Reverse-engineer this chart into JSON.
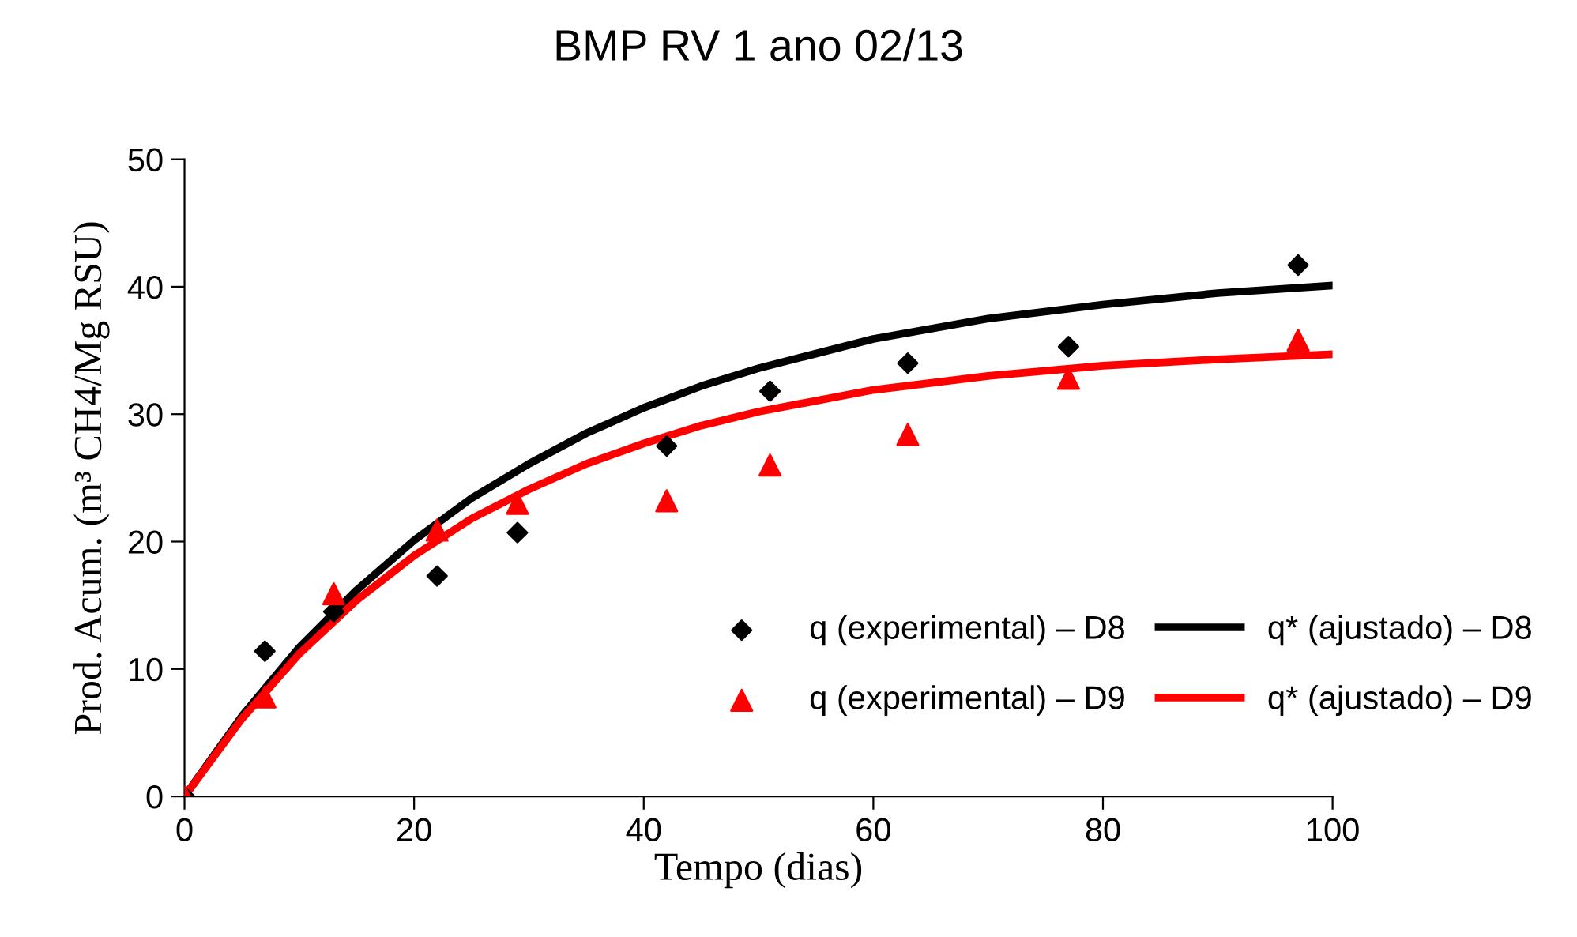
{
  "chart_data": {
    "type": "scatter",
    "title": "BMP RV 1 ano 02/13",
    "xlabel": "Tempo (dias)",
    "ylabel": "Prod. Acum. (m³ CH4/Mg RSU)",
    "xlim": [
      0,
      100
    ],
    "xticks": [
      0,
      20,
      40,
      60,
      80,
      100
    ],
    "ylim": [
      0,
      50
    ],
    "yticks": [
      0,
      10,
      20,
      30,
      40,
      50
    ],
    "grid": false,
    "legend": "bottom right",
    "series": [
      {
        "name": "q (experimental) – D8",
        "marker": "diamond",
        "color": "#000000",
        "x": [
          0,
          7,
          13,
          22,
          29,
          42,
          51,
          63,
          77,
          97
        ],
        "values": [
          0,
          11.4,
          14.5,
          17.3,
          20.7,
          27.5,
          31.8,
          34.0,
          35.3,
          41.7
        ]
      },
      {
        "name": "q (experimental) – D9",
        "marker": "triangle",
        "color": "#ff0000",
        "x": [
          0,
          7,
          13,
          22,
          29,
          42,
          51,
          63,
          77,
          97
        ],
        "values": [
          0,
          7.8,
          15.9,
          20.9,
          23.0,
          23.2,
          26.0,
          28.4,
          32.8,
          35.8
        ]
      },
      {
        "name": "q* (ajustado) – D8",
        "type": "line",
        "line_style": "solid",
        "color": "#000000",
        "x": [
          0,
          5,
          10,
          15,
          20,
          25,
          30,
          35,
          40,
          45,
          50,
          60,
          70,
          80,
          90,
          100
        ],
        "values": [
          0,
          6.3,
          11.7,
          16.2,
          20.1,
          23.4,
          26.1,
          28.5,
          30.5,
          32.2,
          33.6,
          35.9,
          37.5,
          38.6,
          39.5,
          40.1
        ]
      },
      {
        "name": "q* (ajustado) – D9",
        "type": "line",
        "line_style": "solid",
        "color": "#ff0000",
        "x": [
          0,
          5,
          10,
          15,
          20,
          25,
          30,
          35,
          40,
          45,
          50,
          60,
          70,
          80,
          90,
          100
        ],
        "values": [
          0,
          6.1,
          11.2,
          15.4,
          18.9,
          21.8,
          24.1,
          26.1,
          27.7,
          29.1,
          30.2,
          31.9,
          33.0,
          33.8,
          34.3,
          34.7
        ]
      }
    ]
  }
}
